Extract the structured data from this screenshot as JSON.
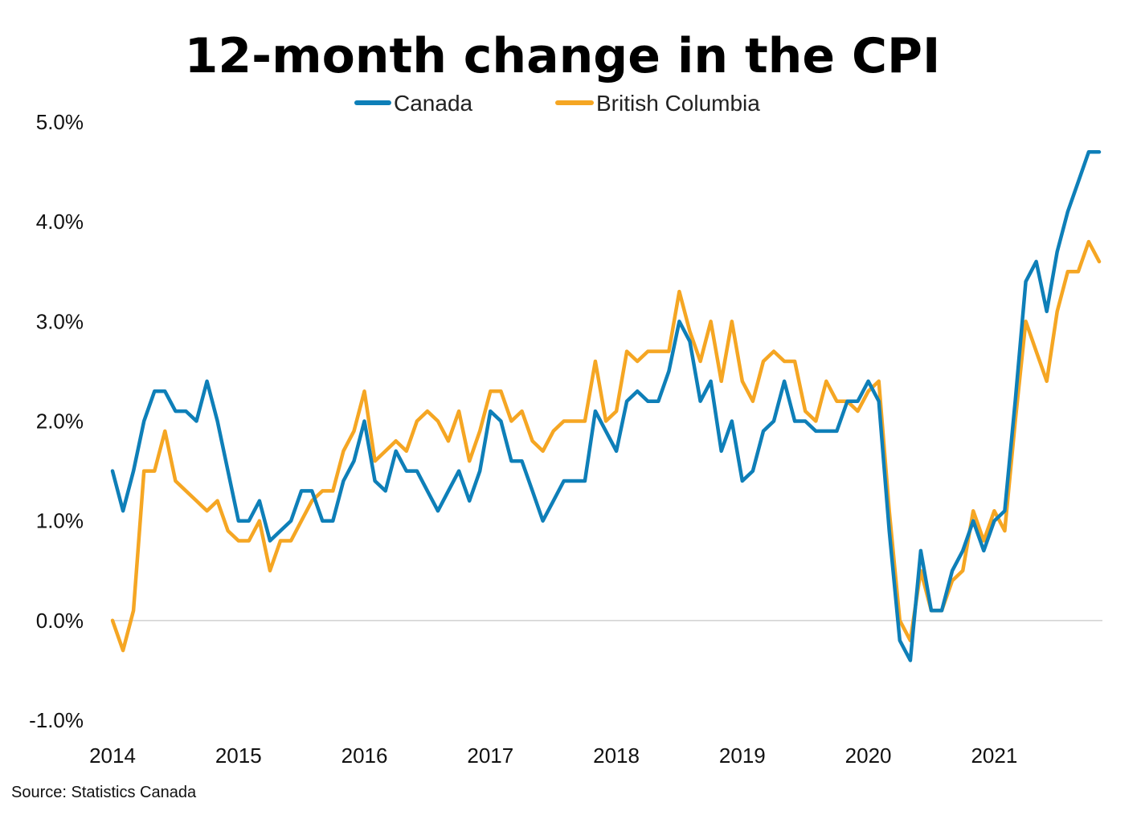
{
  "chart_data": {
    "type": "line",
    "title": "12-month change in the CPI",
    "source": "Source: Statistics Canada",
    "ylim": [
      -1.0,
      5.0
    ],
    "yticks": [
      -1.0,
      0.0,
      1.0,
      2.0,
      3.0,
      4.0,
      5.0
    ],
    "ytick_labels": [
      "-1.0%",
      "0.0%",
      "1.0%",
      "2.0%",
      "3.0%",
      "4.0%",
      "5.0%"
    ],
    "xticks": [
      "2014",
      "2015",
      "2016",
      "2017",
      "2018",
      "2019",
      "2020",
      "2021"
    ],
    "grid": false,
    "zero_line": true,
    "legend_position": "top",
    "series": [
      {
        "name": "Canada",
        "color": "#0E7FB8",
        "values": [
          1.5,
          1.1,
          1.5,
          2.0,
          2.3,
          2.3,
          2.1,
          2.1,
          2.0,
          2.4,
          2.0,
          1.5,
          1.0,
          1.0,
          1.2,
          0.8,
          0.9,
          1.0,
          1.3,
          1.3,
          1.0,
          1.0,
          1.4,
          1.6,
          2.0,
          1.4,
          1.3,
          1.7,
          1.5,
          1.5,
          1.3,
          1.1,
          1.3,
          1.5,
          1.2,
          1.5,
          2.1,
          2.0,
          1.6,
          1.6,
          1.3,
          1.0,
          1.2,
          1.4,
          1.4,
          1.4,
          2.1,
          1.9,
          1.7,
          2.2,
          2.3,
          2.2,
          2.2,
          2.5,
          3.0,
          2.8,
          2.2,
          2.4,
          1.7,
          2.0,
          1.4,
          1.5,
          1.9,
          2.0,
          2.4,
          2.0,
          2.0,
          1.9,
          1.9,
          1.9,
          2.2,
          2.2,
          2.4,
          2.2,
          0.9,
          -0.2,
          -0.4,
          0.7,
          0.1,
          0.1,
          0.5,
          0.7,
          1.0,
          0.7,
          1.0,
          1.1,
          2.2,
          3.4,
          3.6,
          3.1,
          3.7,
          4.1,
          4.4,
          4.7,
          4.7
        ]
      },
      {
        "name": "British Columbia",
        "color": "#F5A623",
        "values": [
          0.0,
          -0.3,
          0.1,
          1.5,
          1.5,
          1.9,
          1.4,
          1.3,
          1.2,
          1.1,
          1.2,
          0.9,
          0.8,
          0.8,
          1.0,
          0.5,
          0.8,
          0.8,
          1.0,
          1.2,
          1.3,
          1.3,
          1.7,
          1.9,
          2.3,
          1.6,
          1.7,
          1.8,
          1.7,
          2.0,
          2.1,
          2.0,
          1.8,
          2.1,
          1.6,
          1.9,
          2.3,
          2.3,
          2.0,
          2.1,
          1.8,
          1.7,
          1.9,
          2.0,
          2.0,
          2.0,
          2.6,
          2.0,
          2.1,
          2.7,
          2.6,
          2.7,
          2.7,
          2.7,
          3.3,
          2.9,
          2.6,
          3.0,
          2.4,
          3.0,
          2.4,
          2.2,
          2.6,
          2.7,
          2.6,
          2.6,
          2.1,
          2.0,
          2.4,
          2.2,
          2.2,
          2.1,
          2.3,
          2.4,
          1.1,
          0.0,
          -0.2,
          0.5,
          0.1,
          0.1,
          0.4,
          0.5,
          1.1,
          0.8,
          1.1,
          0.9,
          2.0,
          3.0,
          2.7,
          2.4,
          3.1,
          3.5,
          3.5,
          3.8,
          3.6
        ]
      }
    ]
  }
}
